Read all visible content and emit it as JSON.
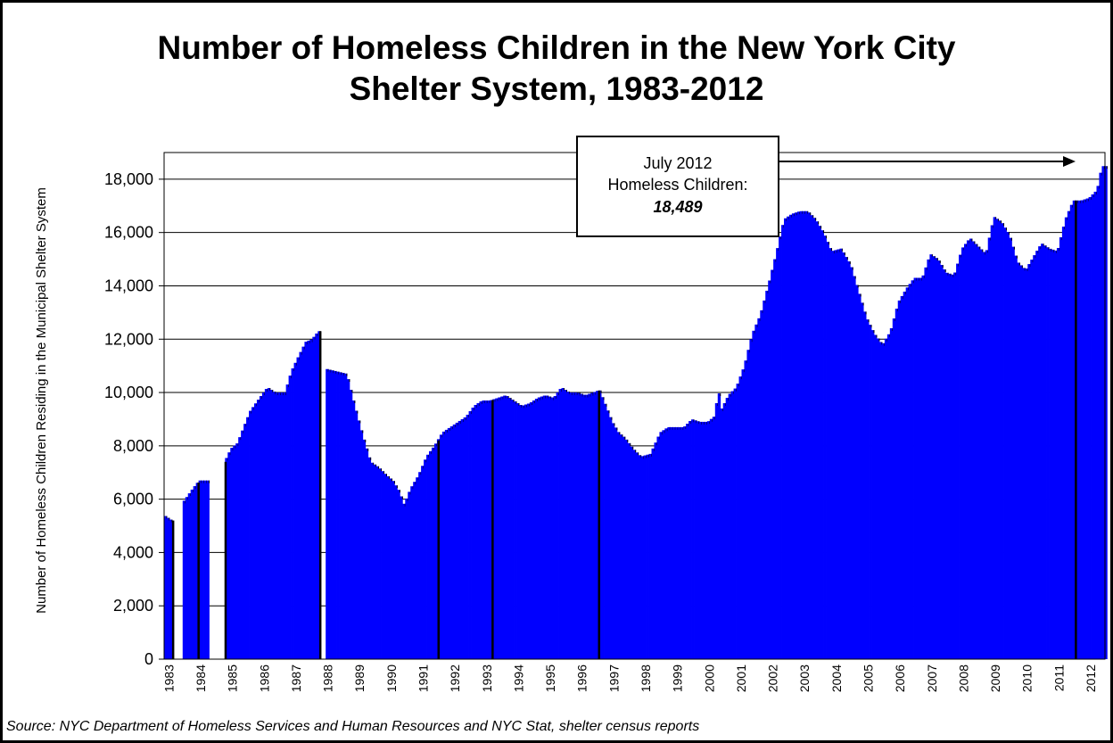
{
  "title_line1": "Number of Homeless Children in the New York City",
  "title_line2": "Shelter System, 1983-2012",
  "source": "Source:  NYC Department of Homeless Services and Human Resources and NYC Stat, shelter census reports",
  "annotation": {
    "line1": "July 2012",
    "line2": "Homeless Children:",
    "value": "18,489"
  },
  "colors": {
    "bar": "#0000ff",
    "bar_edge": "#000000",
    "grid": "#000000"
  },
  "chart_data": {
    "type": "bar",
    "title": "Number of Homeless Children in the New York City Shelter System, 1983-2012",
    "xlabel": "",
    "ylabel": "Number of Homeless Children Residing in the Municipal Shelter System",
    "ylim": [
      0,
      19000
    ],
    "yticks": [
      0,
      2000,
      4000,
      6000,
      8000,
      10000,
      12000,
      14000,
      16000,
      18000
    ],
    "ytick_labels": [
      "0",
      "2,000",
      "4,000",
      "6,000",
      "8,000",
      "10,000",
      "12,000",
      "14,000",
      "16,000",
      "18,000"
    ],
    "grid": true,
    "x_range": [
      1983.0,
      2012.6
    ],
    "year_labels": [
      "1983",
      "1984",
      "1985",
      "1986",
      "1987",
      "1988",
      "1989",
      "1990",
      "1991",
      "1992",
      "1993",
      "1994",
      "1995",
      "1996",
      "1997",
      "1998",
      "1999",
      "2000",
      "2001",
      "2002",
      "2003",
      "2004",
      "2005",
      "2006",
      "2007",
      "2008",
      "2009",
      "2010",
      "2011",
      "2012"
    ],
    "gaps": [
      [
        1983.27,
        1983.6
      ],
      [
        1984.43,
        1984.9
      ],
      [
        1987.88,
        1988.05
      ]
    ],
    "series_points": [
      [
        1983.0,
        5400
      ],
      [
        1983.25,
        5200
      ],
      [
        1983.6,
        5900
      ],
      [
        1983.9,
        6400
      ],
      [
        1984.1,
        6700
      ],
      [
        1984.42,
        6700
      ],
      [
        1984.9,
        7400
      ],
      [
        1985.1,
        7900
      ],
      [
        1985.3,
        8100
      ],
      [
        1985.5,
        8700
      ],
      [
        1985.7,
        9300
      ],
      [
        1986.0,
        9800
      ],
      [
        1986.25,
        10200
      ],
      [
        1986.5,
        10000
      ],
      [
        1986.8,
        10000
      ],
      [
        1987.0,
        10800
      ],
      [
        1987.2,
        11300
      ],
      [
        1987.45,
        11900
      ],
      [
        1987.65,
        12000
      ],
      [
        1987.85,
        12300
      ],
      [
        1988.05,
        10900
      ],
      [
        1988.4,
        10800
      ],
      [
        1988.75,
        10700
      ],
      [
        1989.0,
        9500
      ],
      [
        1989.25,
        8400
      ],
      [
        1989.5,
        7400
      ],
      [
        1989.75,
        7200
      ],
      [
        1990.0,
        6900
      ],
      [
        1990.2,
        6700
      ],
      [
        1990.4,
        6300
      ],
      [
        1990.55,
        5800
      ],
      [
        1990.75,
        6400
      ],
      [
        1991.0,
        6900
      ],
      [
        1991.25,
        7600
      ],
      [
        1991.5,
        8000
      ],
      [
        1991.75,
        8500
      ],
      [
        1992.0,
        8700
      ],
      [
        1992.25,
        8900
      ],
      [
        1992.5,
        9100
      ],
      [
        1992.75,
        9500
      ],
      [
        1993.0,
        9700
      ],
      [
        1993.25,
        9700
      ],
      [
        1993.5,
        9800
      ],
      [
        1993.75,
        9900
      ],
      [
        1994.0,
        9700
      ],
      [
        1994.25,
        9500
      ],
      [
        1994.5,
        9600
      ],
      [
        1994.75,
        9800
      ],
      [
        1995.0,
        9900
      ],
      [
        1995.25,
        9800
      ],
      [
        1995.5,
        10200
      ],
      [
        1995.75,
        10000
      ],
      [
        1996.0,
        10000
      ],
      [
        1996.25,
        9900
      ],
      [
        1996.5,
        10000
      ],
      [
        1996.7,
        10100
      ],
      [
        1996.9,
        9500
      ],
      [
        1997.1,
        8900
      ],
      [
        1997.3,
        8500
      ],
      [
        1997.5,
        8300
      ],
      [
        1997.75,
        7900
      ],
      [
        1998.0,
        7600
      ],
      [
        1998.3,
        7700
      ],
      [
        1998.6,
        8500
      ],
      [
        1998.85,
        8700
      ],
      [
        1999.1,
        8700
      ],
      [
        1999.35,
        8700
      ],
      [
        1999.6,
        9000
      ],
      [
        1999.85,
        8900
      ],
      [
        2000.1,
        8900
      ],
      [
        2000.3,
        9100
      ],
      [
        2000.45,
        10100
      ],
      [
        2000.5,
        9300
      ],
      [
        2000.75,
        9900
      ],
      [
        2001.0,
        10200
      ],
      [
        2001.25,
        11000
      ],
      [
        2001.5,
        12200
      ],
      [
        2001.75,
        12900
      ],
      [
        2002.0,
        14000
      ],
      [
        2002.25,
        15200
      ],
      [
        2002.5,
        16500
      ],
      [
        2002.75,
        16700
      ],
      [
        2003.0,
        16800
      ],
      [
        2003.25,
        16800
      ],
      [
        2003.5,
        16500
      ],
      [
        2003.75,
        16000
      ],
      [
        2004.0,
        15300
      ],
      [
        2004.3,
        15400
      ],
      [
        2004.6,
        14800
      ],
      [
        2004.85,
        13800
      ],
      [
        2005.1,
        12800
      ],
      [
        2005.35,
        12200
      ],
      [
        2005.6,
        11800
      ],
      [
        2005.85,
        12300
      ],
      [
        2006.1,
        13400
      ],
      [
        2006.35,
        13900
      ],
      [
        2006.6,
        14300
      ],
      [
        2006.85,
        14300
      ],
      [
        2007.1,
        15200
      ],
      [
        2007.35,
        15000
      ],
      [
        2007.6,
        14500
      ],
      [
        2007.85,
        14400
      ],
      [
        2008.1,
        15400
      ],
      [
        2008.35,
        15800
      ],
      [
        2008.6,
        15500
      ],
      [
        2008.85,
        15200
      ],
      [
        2009.1,
        16600
      ],
      [
        2009.35,
        16400
      ],
      [
        2009.6,
        15900
      ],
      [
        2009.85,
        14900
      ],
      [
        2010.1,
        14600
      ],
      [
        2010.35,
        15100
      ],
      [
        2010.6,
        15600
      ],
      [
        2010.85,
        15400
      ],
      [
        2011.1,
        15300
      ],
      [
        2011.35,
        16500
      ],
      [
        2011.6,
        17200
      ],
      [
        2011.85,
        17200
      ],
      [
        2012.1,
        17300
      ],
      [
        2012.35,
        17600
      ],
      [
        2012.5,
        18489
      ]
    ],
    "dark_markers": [
      1983.25,
      1984.05,
      1984.9,
      1987.88,
      1991.6,
      1993.3,
      1996.65,
      2011.65
    ]
  }
}
